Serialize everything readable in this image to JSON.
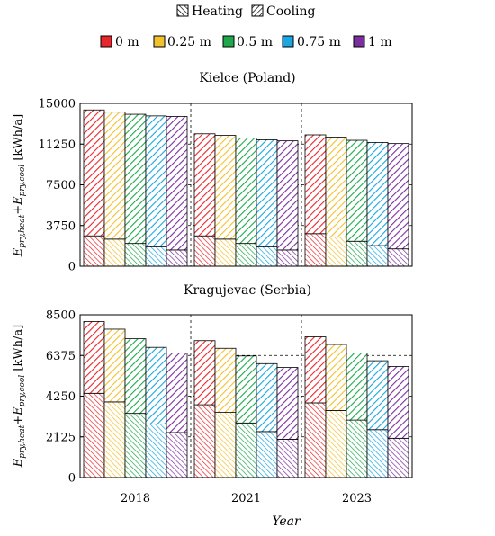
{
  "legend_type": [
    "Heating",
    "Cooling"
  ],
  "legend_depth": [
    "0 m",
    "0.25 m",
    "0.5 m",
    "0.75 m",
    "1 m"
  ],
  "chart_data": [
    {
      "type": "bar",
      "stacked": true,
      "title": "Kielce (Poland)",
      "ylabel": "E_{pry,heat}+E_{pry,cool} [kWh/a]",
      "categories": [
        "2018",
        "2021",
        "2023"
      ],
      "ylim": [
        0,
        15000
      ],
      "yticks": [
        "0",
        "3750",
        "7500",
        "11250",
        "15000"
      ],
      "series": [
        {
          "name": "0 m",
          "color": "#e8262b",
          "cooling": [
            2800,
            2800,
            3000
          ],
          "heating": [
            11600,
            9400,
            9100
          ]
        },
        {
          "name": "0.25 m",
          "color": "#f2c12e",
          "cooling": [
            2500,
            2500,
            2700
          ],
          "heating": [
            11700,
            9550,
            9200
          ]
        },
        {
          "name": "0.5 m",
          "color": "#1ea84b",
          "cooling": [
            2100,
            2100,
            2300
          ],
          "heating": [
            11900,
            9700,
            9300
          ]
        },
        {
          "name": "0.75 m",
          "color": "#1aa6e0",
          "cooling": [
            1800,
            1800,
            1900
          ],
          "heating": [
            12050,
            9850,
            9500
          ]
        },
        {
          "name": "1 m",
          "color": "#7b2f9e",
          "cooling": [
            1500,
            1500,
            1600
          ],
          "heating": [
            12300,
            10050,
            9700
          ]
        }
      ]
    },
    {
      "type": "bar",
      "stacked": true,
      "title": "Kragujevac (Serbia)",
      "ylabel": "E_{pry,heat}+E_{pry,cool} [kWh/a]",
      "categories": [
        "2018",
        "2021",
        "2023"
      ],
      "ylim": [
        0,
        8500
      ],
      "yticks": [
        "0",
        "2125",
        "4250",
        "6375",
        "8500"
      ],
      "series": [
        {
          "name": "0 m",
          "color": "#e8262b",
          "cooling": [
            4400,
            3800,
            3900
          ],
          "heating": [
            3750,
            3350,
            3450
          ]
        },
        {
          "name": "0.25 m",
          "color": "#f2c12e",
          "cooling": [
            3950,
            3400,
            3500
          ],
          "heating": [
            3800,
            3350,
            3450
          ]
        },
        {
          "name": "0.5 m",
          "color": "#1ea84b",
          "cooling": [
            3350,
            2850,
            3000
          ],
          "heating": [
            3900,
            3500,
            3500
          ]
        },
        {
          "name": "0.75 m",
          "color": "#1aa6e0",
          "cooling": [
            2800,
            2400,
            2500
          ],
          "heating": [
            4000,
            3550,
            3600
          ]
        },
        {
          "name": "1 m",
          "color": "#7b2f9e",
          "cooling": [
            2350,
            2000,
            2050
          ],
          "heating": [
            4150,
            3750,
            3750
          ]
        }
      ]
    }
  ],
  "xlabel": "Year"
}
